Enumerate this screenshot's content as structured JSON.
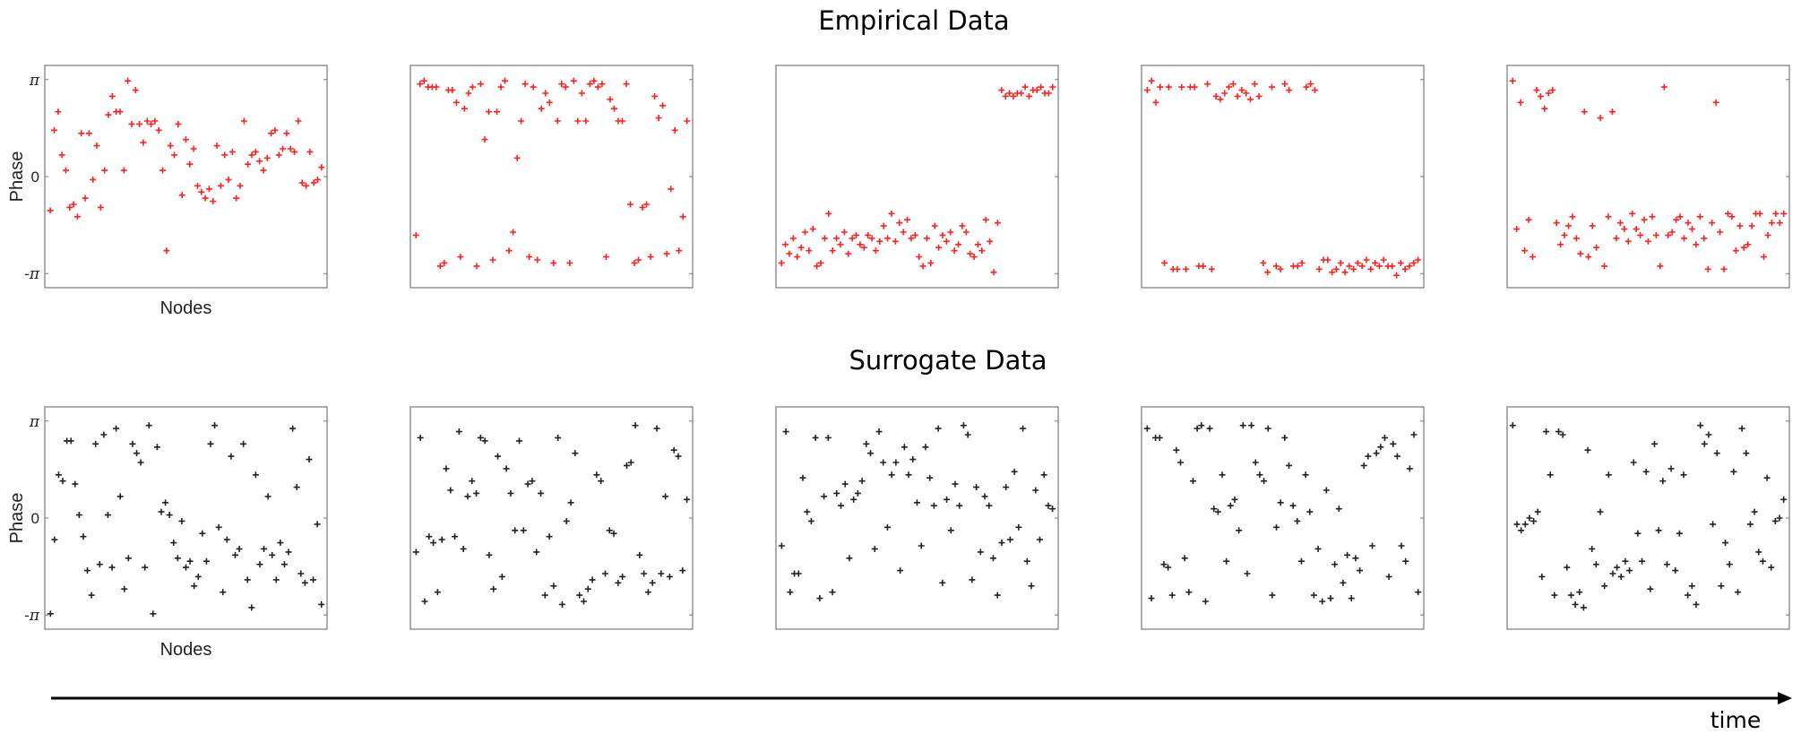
{
  "figure": {
    "top_title": "Empirical Data",
    "bottom_title": "Surrogate Data",
    "time_label": "time",
    "empirical_color": "#ff2020",
    "surrogate_color": "#222222"
  },
  "chart_data": [
    {
      "type": "scatter",
      "row": "empirical",
      "index": 1,
      "ylabel": "Phase",
      "xlabel": "Nodes",
      "yticks": [
        "-π",
        "0",
        "π"
      ],
      "ylim": [
        -3.6,
        3.6
      ],
      "xlim": [
        0,
        60
      ],
      "marker": "+",
      "color": "#ff2020",
      "y": [
        -1.1,
        1.5,
        2.1,
        0.7,
        0.2,
        -1.0,
        -0.9,
        -1.3,
        1.4,
        -0.7,
        1.4,
        -0.1,
        1.0,
        -1.0,
        0.2,
        2.0,
        2.6,
        2.1,
        2.1,
        0.2,
        3.1,
        1.7,
        2.8,
        1.7,
        1.1,
        1.8,
        1.7,
        1.8,
        1.5,
        0.2,
        -2.4,
        1.0,
        0.7,
        1.7,
        -0.6,
        1.2,
        0.4,
        0.9,
        -0.3,
        -0.5,
        -0.7,
        -0.4,
        -0.8,
        1.0,
        -0.3,
        0.7,
        -0.1,
        0.8,
        -0.7,
        -0.3,
        1.8,
        0.4,
        0.7,
        0.8,
        0.5,
        0.2,
        0.6,
        1.4,
        1.5,
        0.7,
        0.9,
        1.4,
        0.9,
        0.8,
        1.8,
        -0.2,
        -0.3,
        0.8,
        -0.2,
        -0.1,
        0.3
      ]
    },
    {
      "type": "scatter",
      "row": "empirical",
      "index": 2,
      "ylim": [
        -3.6,
        3.6
      ],
      "xlim": [
        0,
        60
      ],
      "marker": "+",
      "color": "#ff2020",
      "y": [
        -1.9,
        3.0,
        3.1,
        2.9,
        2.9,
        2.9,
        -2.9,
        -2.8,
        2.8,
        2.8,
        2.4,
        -2.6,
        2.2,
        2.7,
        2.9,
        -2.9,
        3.0,
        1.2,
        2.1,
        -2.7,
        2.1,
        2.9,
        3.1,
        -2.4,
        -1.8,
        0.6,
        1.8,
        3.0,
        -2.6,
        2.9,
        -2.7,
        2.2,
        2.7,
        2.4,
        -2.8,
        1.8,
        3.0,
        2.9,
        -2.8,
        3.1,
        1.8,
        2.7,
        1.8,
        3.0,
        3.1,
        2.9,
        3.0,
        -2.6,
        2.5,
        2.2,
        1.8,
        1.8,
        3.0,
        -0.9,
        -2.8,
        -2.7,
        -1.0,
        -0.9,
        -2.6,
        2.6,
        1.9,
        2.3,
        -2.5,
        -0.4,
        1.5,
        -2.4,
        -1.3,
        1.8
      ]
    },
    {
      "type": "scatter",
      "row": "empirical",
      "index": 3,
      "ylim": [
        -3.6,
        3.6
      ],
      "xlim": [
        0,
        60
      ],
      "marker": "+",
      "color": "#ff2020",
      "y": [
        -2.8,
        -2.2,
        -2.5,
        -2.0,
        -2.6,
        -2.3,
        -1.8,
        -2.4,
        -1.7,
        -2.9,
        -2.8,
        -2.0,
        -1.2,
        -2.4,
        -2.0,
        -2.2,
        -1.8,
        -2.5,
        -2.0,
        -1.9,
        -2.2,
        -2.3,
        -1.9,
        -2.0,
        -2.4,
        -2.1,
        -1.6,
        -2.0,
        -1.2,
        -2.1,
        -1.5,
        -1.8,
        -1.4,
        -2.0,
        -1.9,
        -2.6,
        -2.9,
        -2.0,
        -2.8,
        -1.6,
        -2.3,
        -1.9,
        -2.1,
        -1.8,
        -2.4,
        -2.2,
        -1.6,
        -1.8,
        -2.5,
        -2.6,
        -2.2,
        -2.4,
        -1.4,
        -2.1,
        -3.1,
        -1.5,
        2.8,
        2.6,
        2.7,
        2.6,
        2.7,
        2.7,
        2.9,
        2.6,
        2.8,
        2.8,
        2.9,
        2.7,
        2.7,
        2.9
      ]
    },
    {
      "type": "scatter",
      "row": "empirical",
      "index": 4,
      "ylim": [
        -3.6,
        3.6
      ],
      "xlim": [
        0,
        60
      ],
      "marker": "+",
      "color": "#ff2020",
      "y": [
        2.8,
        3.1,
        2.4,
        2.9,
        -2.8,
        2.9,
        -3.0,
        -3.0,
        2.9,
        -3.0,
        2.9,
        2.9,
        -2.9,
        -2.9,
        3.0,
        -3.0,
        2.6,
        2.5,
        2.7,
        2.9,
        3.0,
        2.6,
        2.8,
        2.7,
        2.5,
        3.0,
        2.6,
        -2.8,
        -3.1,
        2.9,
        -2.9,
        -3.0,
        3.0,
        2.8,
        -2.9,
        -2.9,
        -2.8,
        2.9,
        3.0,
        2.8,
        -3.0,
        -2.7,
        -2.7,
        -3.1,
        -3.0,
        -2.8,
        -3.1,
        -2.9,
        -3.0,
        -2.8,
        -2.9,
        -2.7,
        -3.0,
        -2.8,
        -2.9,
        -2.7,
        -2.9,
        -2.9,
        -3.2,
        -2.8,
        -3.0,
        -2.9,
        -2.8,
        -2.7
      ]
    },
    {
      "type": "scatter",
      "row": "empirical",
      "index": 5,
      "ylim": [
        -3.6,
        3.6
      ],
      "xlim": [
        0,
        60
      ],
      "marker": "+",
      "color": "#ff2020",
      "y": [
        3.1,
        -1.7,
        2.4,
        -2.4,
        -1.4,
        -2.6,
        2.8,
        2.6,
        2.2,
        2.7,
        2.8,
        -1.5,
        -2.2,
        -1.9,
        -1.6,
        -1.3,
        -2.0,
        -2.5,
        2.1,
        -2.6,
        -1.6,
        -2.3,
        1.9,
        -2.9,
        -1.3,
        2.1,
        -2.0,
        -1.5,
        -1.7,
        -2.1,
        -1.2,
        -1.7,
        -1.9,
        -1.4,
        -2.1,
        -1.3,
        -1.9,
        -2.9,
        2.9,
        -1.9,
        -1.8,
        -1.4,
        -1.3,
        -2.0,
        -1.5,
        -1.7,
        -2.2,
        -1.3,
        -2.0,
        -3.0,
        -1.5,
        2.4,
        -1.8,
        -3.0,
        -1.2,
        -1.3,
        -2.4,
        -1.6,
        -2.3,
        -2.2,
        -1.6,
        -1.2,
        -1.2,
        -2.6,
        -1.9,
        -1.5,
        -1.2,
        -1.5,
        -1.2
      ]
    },
    {
      "type": "scatter",
      "row": "surrogate",
      "index": 1,
      "ylabel": "Phase",
      "xlabel": "Nodes",
      "yticks": [
        "-π",
        "0",
        "π"
      ],
      "ylim": [
        -3.6,
        3.6
      ],
      "xlim": [
        0,
        60
      ],
      "marker": "+",
      "color": "#222222",
      "y": [
        -3.1,
        -0.7,
        1.4,
        1.2,
        2.5,
        2.5,
        1.1,
        0.1,
        -0.6,
        -1.7,
        -2.5,
        2.4,
        -1.5,
        2.7,
        0.1,
        -1.6,
        2.9,
        0.7,
        -2.3,
        -1.3,
        2.4,
        2.1,
        1.8,
        -1.6,
        3.0,
        -3.1,
        2.3,
        0.2,
        0.5,
        0.1,
        -0.8,
        -1.3,
        -0.1,
        -1.6,
        -1.4,
        -2.2,
        -1.9,
        -0.5,
        -1.4,
        2.4,
        3.0,
        -0.3,
        -2.4,
        -0.7,
        2.0,
        -1.2,
        -1.0,
        2.4,
        -2.0,
        -2.9,
        1.4,
        -1.5,
        -1.0,
        0.7,
        -1.2,
        -2.0,
        -0.8,
        -1.5,
        -1.1,
        2.9,
        1.0,
        -1.8,
        -2.1,
        1.9,
        -2.0,
        -0.2,
        -2.8
      ]
    },
    {
      "type": "scatter",
      "row": "surrogate",
      "index": 2,
      "ylim": [
        -3.6,
        3.6
      ],
      "xlim": [
        0,
        60
      ],
      "marker": "+",
      "color": "#222222",
      "y": [
        -1.1,
        2.6,
        -2.7,
        -0.6,
        -0.8,
        -2.4,
        -0.7,
        1.6,
        0.9,
        -0.6,
        2.8,
        -1.0,
        0.7,
        1.2,
        0.8,
        2.6,
        2.5,
        -1.2,
        -2.3,
        2.0,
        -1.9,
        1.6,
        0.8,
        -0.4,
        2.5,
        -0.4,
        1.1,
        1.2,
        -1.1,
        0.8,
        -2.5,
        -0.6,
        -2.2,
        2.6,
        -2.8,
        -0.1,
        0.5,
        2.1,
        -2.5,
        -2.7,
        -2.3,
        -2.0,
        1.4,
        1.2,
        -1.8,
        -0.4,
        -0.5,
        -2.1,
        -1.9,
        1.7,
        1.8,
        3.0,
        -1.2,
        -1.8,
        -2.4,
        -2.1,
        2.9,
        -1.8,
        0.7,
        -1.9,
        2.2,
        2.0,
        -1.7,
        0.6
      ]
    },
    {
      "type": "scatter",
      "row": "surrogate",
      "index": 3,
      "ylim": [
        -3.6,
        3.6
      ],
      "xlim": [
        0,
        60
      ],
      "marker": "+",
      "color": "#222222",
      "y": [
        -0.9,
        2.8,
        -2.4,
        -1.8,
        -1.8,
        1.3,
        0.2,
        -0.1,
        2.6,
        -2.6,
        0.7,
        2.6,
        -2.4,
        0.8,
        0.4,
        1.1,
        -1.3,
        0.6,
        0.8,
        1.2,
        2.4,
        2.1,
        -1.0,
        2.8,
        1.8,
        -0.3,
        1.4,
        1.8,
        -1.7,
        2.3,
        1.4,
        1.9,
        0.5,
        -0.9,
        2.3,
        1.3,
        0.4,
        2.9,
        -2.1,
        0.6,
        -0.4,
        1.1,
        0.4,
        3.0,
        2.7,
        -2.0,
        1.0,
        -1.1,
        0.7,
        0.4,
        -1.3,
        -2.5,
        -0.8,
        1.0,
        -0.7,
        1.5,
        -0.3,
        2.9,
        -1.4,
        -2.2,
        0.9,
        -0.7,
        1.4,
        0.4,
        0.3
      ]
    },
    {
      "type": "scatter",
      "row": "surrogate",
      "index": 4,
      "ylim": [
        -3.6,
        3.6
      ],
      "xlim": [
        0,
        60
      ],
      "marker": "+",
      "color": "#222222",
      "y": [
        2.9,
        -2.6,
        2.6,
        2.6,
        -1.5,
        -1.6,
        -2.5,
        2.2,
        1.8,
        -1.3,
        -2.4,
        1.2,
        2.9,
        3.0,
        -2.7,
        2.9,
        0.3,
        0.2,
        1.4,
        -1.4,
        0.4,
        0.6,
        -0.4,
        3.0,
        -1.8,
        3.0,
        1.8,
        1.4,
        1.2,
        2.9,
        -2.5,
        -0.3,
        0.5,
        2.6,
        1.7,
        0.4,
        -0.1,
        -1.4,
        1.4,
        0.2,
        -2.5,
        -1.0,
        -2.7,
        0.9,
        -2.6,
        -1.5,
        0.3,
        -2.1,
        -1.2,
        -2.6,
        -1.3,
        -1.7,
        1.7,
        2.0,
        -0.9,
        2.1,
        2.3,
        2.6,
        -1.9,
        2.4,
        2.0,
        -0.9,
        -1.4,
        1.6,
        2.7,
        -2.4
      ]
    },
    {
      "type": "scatter",
      "row": "surrogate",
      "index": 5,
      "ylim": [
        -3.6,
        3.6
      ],
      "xlim": [
        0,
        60
      ],
      "marker": "+",
      "color": "#222222",
      "y": [
        3.0,
        -0.2,
        -0.4,
        -0.2,
        0.0,
        -0.1,
        0.2,
        -1.9,
        2.8,
        1.4,
        -2.5,
        2.8,
        2.7,
        -1.6,
        -2.5,
        -2.8,
        -2.4,
        -2.9,
        2.2,
        -1.0,
        -1.5,
        0.2,
        -2.2,
        1.4,
        -1.8,
        -1.6,
        -1.9,
        -1.4,
        -1.7,
        1.8,
        -0.5,
        -1.4,
        1.5,
        -2.3,
        2.4,
        -0.4,
        1.2,
        -1.5,
        1.6,
        -1.7,
        -0.5,
        1.4,
        -2.5,
        -2.2,
        -2.8,
        3.0,
        2.4,
        2.7,
        -0.2,
        2.1,
        -2.2,
        -0.8,
        -1.5,
        1.5,
        -2.4,
        2.9,
        2.1,
        -0.2,
        0.2,
        -1.1,
        -1.4,
        1.3,
        -1.6,
        -0.1,
        0.0,
        0.6
      ]
    }
  ]
}
